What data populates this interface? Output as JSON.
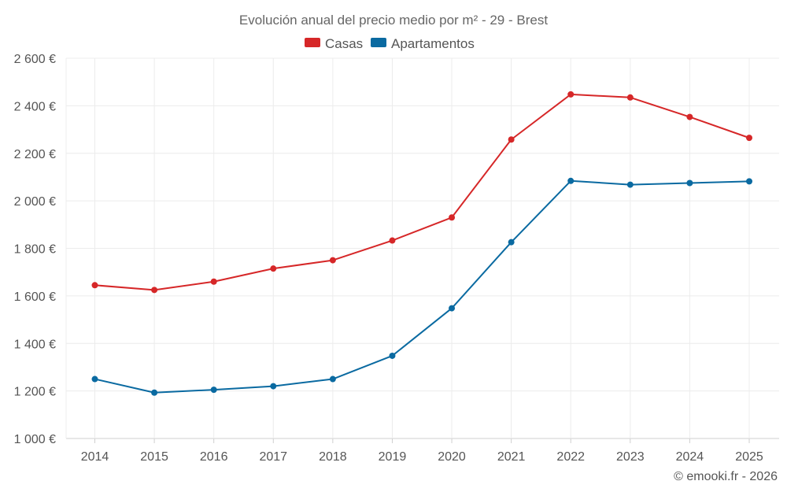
{
  "chart_data": {
    "type": "line",
    "title": "Evolución anual del precio medio por m² - 29 - Brest",
    "categories": [
      "2014",
      "2015",
      "2016",
      "2017",
      "2018",
      "2019",
      "2020",
      "2021",
      "2022",
      "2023",
      "2024",
      "2025"
    ],
    "series": [
      {
        "name": "Casas",
        "color": "#d62728",
        "values": [
          1645,
          1625,
          1660,
          1715,
          1750,
          1833,
          1930,
          2258,
          2448,
          2435,
          2353,
          2265
        ]
      },
      {
        "name": "Apartamentos",
        "color": "#0a6aa1",
        "values": [
          1250,
          1193,
          1205,
          1220,
          1250,
          1348,
          1548,
          1826,
          2084,
          2068,
          2075,
          2082
        ]
      }
    ],
    "ylim": [
      1000,
      2600
    ],
    "yticks": [
      1000,
      1200,
      1400,
      1600,
      1800,
      2000,
      2200,
      2400,
      2600
    ],
    "ytick_labels": [
      "1 000 €",
      "1 200 €",
      "1 400 €",
      "1 600 €",
      "1 800 €",
      "2 000 €",
      "2 200 €",
      "2 400 €",
      "2 600 €"
    ],
    "xlabel": "",
    "ylabel": "",
    "grid": true,
    "legend_position": "top-center",
    "credit": "© emooki.fr - 2026"
  }
}
